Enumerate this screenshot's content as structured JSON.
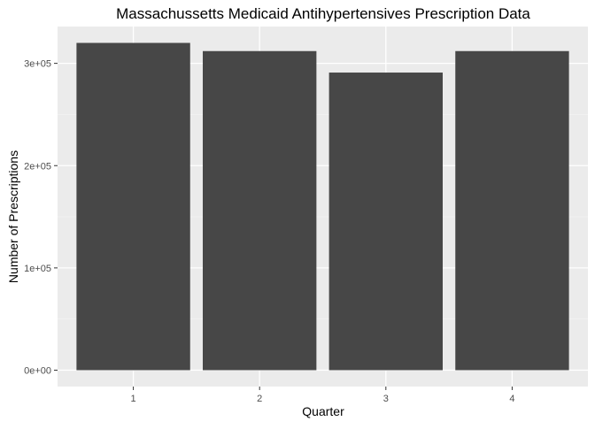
{
  "chart_data": {
    "type": "bar",
    "title": "Massachussetts Medicaid Antihypertensives Prescription Data",
    "xlabel": "Quarter",
    "ylabel": "Number of Prescriptions",
    "categories": [
      "1",
      "2",
      "3",
      "4"
    ],
    "values": [
      320000,
      312000,
      291000,
      312000
    ],
    "yticks": [
      0,
      100000,
      200000,
      300000
    ],
    "ytick_labels": [
      "0e+00",
      "1e+05",
      "2e+05",
      "3e+05"
    ],
    "ylim": [
      -16000,
      336000
    ],
    "grid": true,
    "legend": "none",
    "colors": {
      "bar": "#474747",
      "panel": "#ebebeb",
      "grid_major": "#ffffff",
      "tick": "#333333"
    }
  }
}
